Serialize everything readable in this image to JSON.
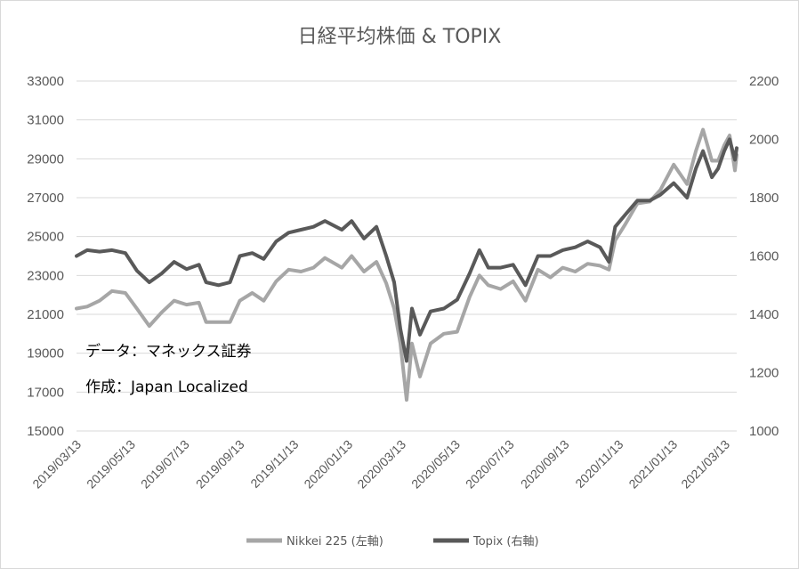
{
  "chart_data": {
    "type": "line",
    "title": "日経平均株価 & TOPIX",
    "notes": [
      "データ：マネックス証券",
      "作成：Japan Localized"
    ],
    "x_ticks": [
      "2019/03/13",
      "2019/05/13",
      "2019/07/13",
      "2019/09/13",
      "2019/11/13",
      "2020/01/13",
      "2020/03/13",
      "2020/05/13",
      "2020/07/13",
      "2020/09/13",
      "2020/11/13",
      "2021/01/13",
      "2021/03/13"
    ],
    "x_range": [
      "2019/03/13",
      "2021/03/26"
    ],
    "y_left": {
      "min": 15000,
      "max": 33000,
      "step": 2000,
      "ticks": [
        "15000",
        "17000",
        "19000",
        "21000",
        "23000",
        "25000",
        "27000",
        "29000",
        "31000",
        "33000"
      ]
    },
    "y_right": {
      "min": 1000,
      "max": 2200,
      "step": 200,
      "ticks": [
        "1000",
        "1200",
        "1400",
        "1600",
        "1800",
        "2000",
        "2200"
      ]
    },
    "grid": "horizontal",
    "legend_position": "bottom",
    "series": [
      {
        "name": "Nikkei 225 (左軸)",
        "axis": "left",
        "color": "#a6a6a6",
        "points": [
          [
            "2019/03/13",
            21300
          ],
          [
            "2019/03/25",
            21400
          ],
          [
            "2019/04/08",
            21700
          ],
          [
            "2019/04/22",
            22200
          ],
          [
            "2019/05/07",
            22100
          ],
          [
            "2019/05/20",
            21300
          ],
          [
            "2019/06/03",
            20400
          ],
          [
            "2019/06/17",
            21100
          ],
          [
            "2019/07/01",
            21700
          ],
          [
            "2019/07/15",
            21500
          ],
          [
            "2019/07/29",
            21600
          ],
          [
            "2019/08/06",
            20600
          ],
          [
            "2019/08/20",
            20600
          ],
          [
            "2019/09/02",
            20600
          ],
          [
            "2019/09/13",
            21700
          ],
          [
            "2019/09/27",
            22100
          ],
          [
            "2019/10/10",
            21700
          ],
          [
            "2019/10/24",
            22700
          ],
          [
            "2019/11/07",
            23300
          ],
          [
            "2019/11/21",
            23200
          ],
          [
            "2019/12/05",
            23400
          ],
          [
            "2019/12/18",
            23900
          ],
          [
            "2020/01/06",
            23400
          ],
          [
            "2020/01/17",
            24000
          ],
          [
            "2020/01/31",
            23200
          ],
          [
            "2020/02/14",
            23700
          ],
          [
            "2020/02/25",
            22600
          ],
          [
            "2020/03/05",
            21300
          ],
          [
            "2020/03/12",
            19500
          ],
          [
            "2020/03/19",
            16600
          ],
          [
            "2020/03/25",
            19500
          ],
          [
            "2020/04/03",
            17800
          ],
          [
            "2020/04/15",
            19500
          ],
          [
            "2020/04/30",
            20000
          ],
          [
            "2020/05/15",
            20100
          ],
          [
            "2020/05/29",
            21900
          ],
          [
            "2020/06/09",
            23000
          ],
          [
            "2020/06/19",
            22500
          ],
          [
            "2020/07/03",
            22300
          ],
          [
            "2020/07/17",
            22700
          ],
          [
            "2020/07/31",
            21700
          ],
          [
            "2020/08/14",
            23300
          ],
          [
            "2020/08/28",
            22900
          ],
          [
            "2020/09/11",
            23400
          ],
          [
            "2020/09/25",
            23200
          ],
          [
            "2020/10/09",
            23600
          ],
          [
            "2020/10/23",
            23500
          ],
          [
            "2020/11/02",
            23300
          ],
          [
            "2020/11/09",
            24800
          ],
          [
            "2020/11/20",
            25600
          ],
          [
            "2020/12/04",
            26700
          ],
          [
            "2020/12/18",
            26800
          ],
          [
            "2020/12/30",
            27400
          ],
          [
            "2021/01/14",
            28700
          ],
          [
            "2021/01/29",
            27700
          ],
          [
            "2021/02/08",
            29400
          ],
          [
            "2021/02/16",
            30500
          ],
          [
            "2021/02/26",
            28900
          ],
          [
            "2021/03/05",
            28900
          ],
          [
            "2021/03/12",
            29700
          ],
          [
            "2021/03/18",
            30200
          ],
          [
            "2021/03/24",
            28400
          ],
          [
            "2021/03/26",
            29200
          ]
        ]
      },
      {
        "name": "Topix (右軸)",
        "axis": "right",
        "color": "#595959",
        "points": [
          [
            "2019/03/13",
            1600
          ],
          [
            "2019/03/25",
            1620
          ],
          [
            "2019/04/08",
            1615
          ],
          [
            "2019/04/22",
            1620
          ],
          [
            "2019/05/07",
            1610
          ],
          [
            "2019/05/20",
            1550
          ],
          [
            "2019/06/03",
            1510
          ],
          [
            "2019/06/17",
            1540
          ],
          [
            "2019/07/01",
            1580
          ],
          [
            "2019/07/15",
            1555
          ],
          [
            "2019/07/29",
            1570
          ],
          [
            "2019/08/06",
            1510
          ],
          [
            "2019/08/20",
            1500
          ],
          [
            "2019/09/02",
            1510
          ],
          [
            "2019/09/13",
            1600
          ],
          [
            "2019/09/27",
            1610
          ],
          [
            "2019/10/10",
            1590
          ],
          [
            "2019/10/24",
            1650
          ],
          [
            "2019/11/07",
            1680
          ],
          [
            "2019/11/21",
            1690
          ],
          [
            "2019/12/05",
            1700
          ],
          [
            "2019/12/18",
            1720
          ],
          [
            "2020/01/06",
            1690
          ],
          [
            "2020/01/17",
            1720
          ],
          [
            "2020/01/31",
            1660
          ],
          [
            "2020/02/14",
            1700
          ],
          [
            "2020/02/25",
            1600
          ],
          [
            "2020/03/05",
            1510
          ],
          [
            "2020/03/12",
            1350
          ],
          [
            "2020/03/19",
            1240
          ],
          [
            "2020/03/25",
            1420
          ],
          [
            "2020/04/03",
            1330
          ],
          [
            "2020/04/15",
            1410
          ],
          [
            "2020/04/30",
            1420
          ],
          [
            "2020/05/15",
            1450
          ],
          [
            "2020/05/29",
            1540
          ],
          [
            "2020/06/09",
            1620
          ],
          [
            "2020/06/19",
            1560
          ],
          [
            "2020/07/03",
            1560
          ],
          [
            "2020/07/17",
            1570
          ],
          [
            "2020/07/31",
            1500
          ],
          [
            "2020/08/14",
            1600
          ],
          [
            "2020/08/28",
            1600
          ],
          [
            "2020/09/11",
            1620
          ],
          [
            "2020/09/25",
            1630
          ],
          [
            "2020/10/09",
            1650
          ],
          [
            "2020/10/23",
            1630
          ],
          [
            "2020/11/02",
            1580
          ],
          [
            "2020/11/09",
            1700
          ],
          [
            "2020/11/20",
            1740
          ],
          [
            "2020/12/04",
            1790
          ],
          [
            "2020/12/18",
            1790
          ],
          [
            "2020/12/30",
            1810
          ],
          [
            "2021/01/14",
            1850
          ],
          [
            "2021/01/29",
            1800
          ],
          [
            "2021/02/08",
            1900
          ],
          [
            "2021/02/16",
            1960
          ],
          [
            "2021/02/26",
            1870
          ],
          [
            "2021/03/05",
            1900
          ],
          [
            "2021/03/12",
            1960
          ],
          [
            "2021/03/18",
            2000
          ],
          [
            "2021/03/24",
            1930
          ],
          [
            "2021/03/26",
            1970
          ]
        ]
      }
    ]
  }
}
